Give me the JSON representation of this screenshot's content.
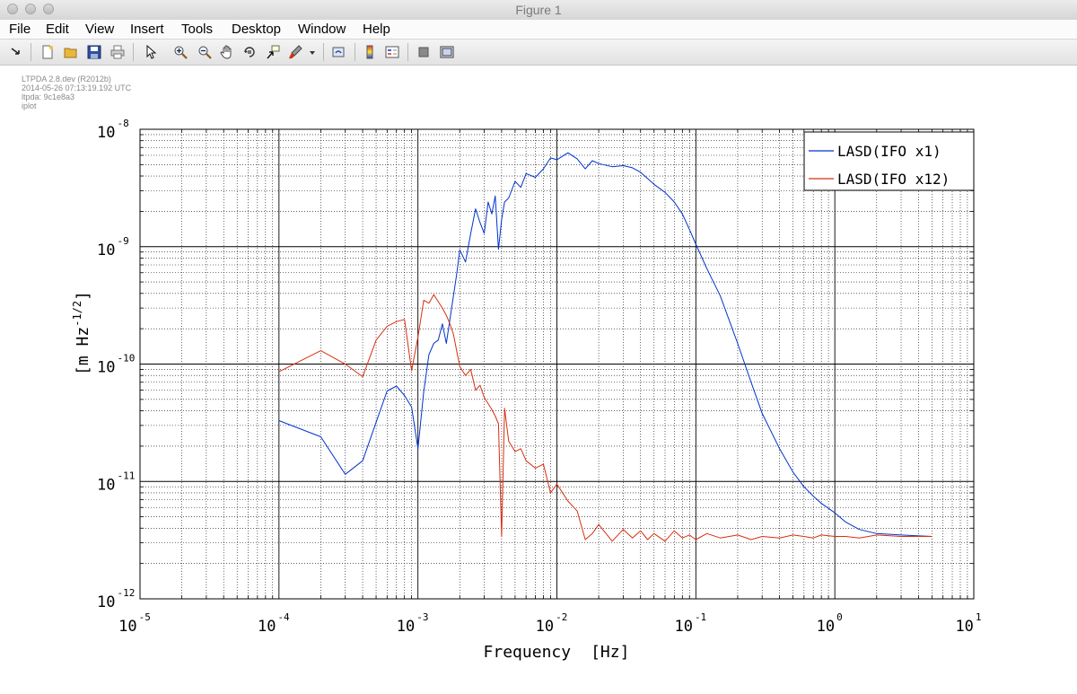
{
  "window": {
    "title": "Figure 1"
  },
  "menu": [
    "File",
    "Edit",
    "View",
    "Insert",
    "Tools",
    "Desktop",
    "Window",
    "Help"
  ],
  "toolbar": [
    {
      "name": "dock-arrow-icon"
    },
    {
      "name": "new-figure-icon"
    },
    {
      "name": "open-file-icon"
    },
    {
      "name": "save-icon"
    },
    {
      "name": "print-icon"
    },
    {
      "name": "edit-plot-arrow-icon"
    },
    {
      "name": "zoom-in-icon"
    },
    {
      "name": "zoom-out-icon"
    },
    {
      "name": "pan-hand-icon"
    },
    {
      "name": "rotate-3d-icon"
    },
    {
      "name": "data-cursor-icon"
    },
    {
      "name": "brush-icon"
    },
    {
      "name": "brush-dropdown-icon"
    },
    {
      "name": "link-plot-icon"
    },
    {
      "name": "insert-colorbar-icon"
    },
    {
      "name": "insert-legend-icon"
    },
    {
      "name": "hide-plot-tools-icon"
    },
    {
      "name": "show-plot-tools-icon"
    }
  ],
  "info_lines": [
    "LTPDA 2.8.dev (R2012b)",
    "2014-05-26 07:13:19.192 UTC",
    "ltpda: 9c1e8a3",
    "iplot"
  ],
  "colors": {
    "series1": "#0033cc",
    "series2": "#d92e10",
    "grid": "#000000"
  },
  "chart_data": {
    "type": "line",
    "x_scale": "log",
    "y_scale": "log",
    "xlim": [
      1e-05,
      10
    ],
    "ylim": [
      1e-12,
      1e-08
    ],
    "grid": true,
    "minor_grid": true,
    "legend_position": "top-right",
    "xlabel": "Frequency [Hz]",
    "ylabel": "[m Hz^-1/2]",
    "xlabel_parts": {
      "main": "Frequency",
      "unit": "[Hz]"
    },
    "ylabel_parts": {
      "prefix": "[m Hz",
      "exponent": "-1/2",
      "suffix": "]"
    },
    "x_ticks": [
      {
        "value": 1e-05,
        "base": "10",
        "exp": "-5"
      },
      {
        "value": 0.0001,
        "base": "10",
        "exp": "-4"
      },
      {
        "value": 0.001,
        "base": "10",
        "exp": "-3"
      },
      {
        "value": 0.01,
        "base": "10",
        "exp": "-2"
      },
      {
        "value": 0.1,
        "base": "10",
        "exp": "-1"
      },
      {
        "value": 1,
        "base": "10",
        "exp": "0"
      },
      {
        "value": 10,
        "base": "10",
        "exp": "1"
      }
    ],
    "y_ticks": [
      {
        "value": 1e-12,
        "base": "10",
        "exp": "-12"
      },
      {
        "value": 1e-11,
        "base": "10",
        "exp": "-11"
      },
      {
        "value": 1e-10,
        "base": "10",
        "exp": "-10"
      },
      {
        "value": 1e-09,
        "base": "10",
        "exp": "-9"
      },
      {
        "value": 1e-08,
        "base": "10",
        "exp": "-8"
      }
    ],
    "series": [
      {
        "name": "LASD(IFO x1)",
        "color": "#0033cc",
        "x": [
          0.0001,
          0.0002,
          0.0003,
          0.0004,
          0.0005,
          0.0006,
          0.0007,
          0.0008,
          0.0009,
          0.001,
          0.0011,
          0.0012,
          0.0013,
          0.0014,
          0.0015,
          0.0016,
          0.0017,
          0.0018,
          0.0019,
          0.002,
          0.0022,
          0.0024,
          0.0026,
          0.0028,
          0.003,
          0.0032,
          0.0034,
          0.0036,
          0.0038,
          0.004,
          0.0042,
          0.0045,
          0.005,
          0.0055,
          0.006,
          0.007,
          0.008,
          0.009,
          0.01,
          0.012,
          0.014,
          0.016,
          0.018,
          0.02,
          0.025,
          0.03,
          0.035,
          0.04,
          0.045,
          0.05,
          0.06,
          0.07,
          0.08,
          0.09,
          0.1,
          0.12,
          0.15,
          0.2,
          0.25,
          0.3,
          0.4,
          0.5,
          0.6,
          0.7,
          0.8,
          1.0,
          1.2,
          1.5,
          2.0,
          3.0,
          5.0
        ],
        "y": [
          3.3e-11,
          2.4e-11,
          1.15e-11,
          1.5e-11,
          3.2e-11,
          5.9e-11,
          6.5e-11,
          5.4e-11,
          4.3e-11,
          1.9e-11,
          5.8e-11,
          1.2e-10,
          1.5e-10,
          1.6e-10,
          2.2e-10,
          1.5e-10,
          2.4e-10,
          3.8e-10,
          5.8e-10,
          9.4e-10,
          7.4e-10,
          1.3e-09,
          2.1e-09,
          1.6e-09,
          1.3e-09,
          2.4e-09,
          1.9e-09,
          2.7e-09,
          9.5e-10,
          1.7e-09,
          2.4e-09,
          2.6e-09,
          3.6e-09,
          3.2e-09,
          4.2e-09,
          3.9e-09,
          4.6e-09,
          5.7e-09,
          5.5e-09,
          6.3e-09,
          5.6e-09,
          4.6e-09,
          5.4e-09,
          5.1e-09,
          4.8e-09,
          4.9e-09,
          4.7e-09,
          4.3e-09,
          3.8e-09,
          3.4e-09,
          2.9e-09,
          2.4e-09,
          1.9e-09,
          1.4e-09,
          1.05e-09,
          6.5e-10,
          3.8e-10,
          1.5e-10,
          7e-11,
          3.8e-11,
          1.9e-11,
          1.2e-11,
          9e-12,
          7.5e-12,
          6.5e-12,
          5.4e-12,
          4.5e-12,
          3.9e-12,
          3.6e-12,
          3.5e-12,
          3.4e-12
        ]
      },
      {
        "name": "LASD(IFO x12)",
        "color": "#d92e10",
        "x": [
          0.0001,
          0.0002,
          0.0003,
          0.0004,
          0.0005,
          0.0006,
          0.0007,
          0.0008,
          0.0009,
          0.001,
          0.0011,
          0.0012,
          0.0013,
          0.0014,
          0.0015,
          0.0016,
          0.0017,
          0.0018,
          0.0019,
          0.002,
          0.0022,
          0.0024,
          0.0026,
          0.0028,
          0.003,
          0.0032,
          0.0034,
          0.0036,
          0.0038,
          0.004,
          0.0042,
          0.0045,
          0.005,
          0.0055,
          0.006,
          0.007,
          0.008,
          0.009,
          0.01,
          0.012,
          0.014,
          0.016,
          0.018,
          0.02,
          0.025,
          0.03,
          0.035,
          0.04,
          0.045,
          0.05,
          0.06,
          0.07,
          0.08,
          0.09,
          0.1,
          0.12,
          0.15,
          0.2,
          0.25,
          0.3,
          0.4,
          0.5,
          0.6,
          0.7,
          0.8,
          1.0,
          1.2,
          1.5,
          2.0,
          3.0,
          5.0
        ],
        "y": [
          8.6e-11,
          1.3e-10,
          1e-10,
          7.8e-11,
          1.6e-10,
          2.1e-10,
          2.3e-10,
          2.4e-10,
          8.8e-11,
          1.7e-10,
          3.5e-10,
          3.3e-10,
          3.9e-10,
          3.4e-10,
          3e-10,
          2.6e-10,
          2.2e-10,
          1.8e-10,
          1.3e-10,
          9.5e-11,
          8e-11,
          9e-11,
          6e-11,
          6.6e-11,
          5.2e-11,
          4.6e-11,
          4.1e-11,
          3.6e-11,
          3.1e-11,
          3.4e-12,
          4.2e-11,
          2.2e-11,
          1.8e-11,
          1.9e-11,
          1.5e-11,
          1.3e-11,
          1.4e-11,
          8e-12,
          9.5e-12,
          6.8e-12,
          5.6e-12,
          3.2e-12,
          3.6e-12,
          4.3e-12,
          3.1e-12,
          3.9e-12,
          3.3e-12,
          3.8e-12,
          3.2e-12,
          3.6e-12,
          3.1e-12,
          3.8e-12,
          3.3e-12,
          3.5e-12,
          3.2e-12,
          3.6e-12,
          3.3e-12,
          3.5e-12,
          3.2e-12,
          3.4e-12,
          3.3e-12,
          3.5e-12,
          3.4e-12,
          3.3e-12,
          3.5e-12,
          3.4e-12,
          3.4e-12,
          3.3e-12,
          3.5e-12,
          3.4e-12,
          3.4e-12
        ]
      }
    ]
  }
}
